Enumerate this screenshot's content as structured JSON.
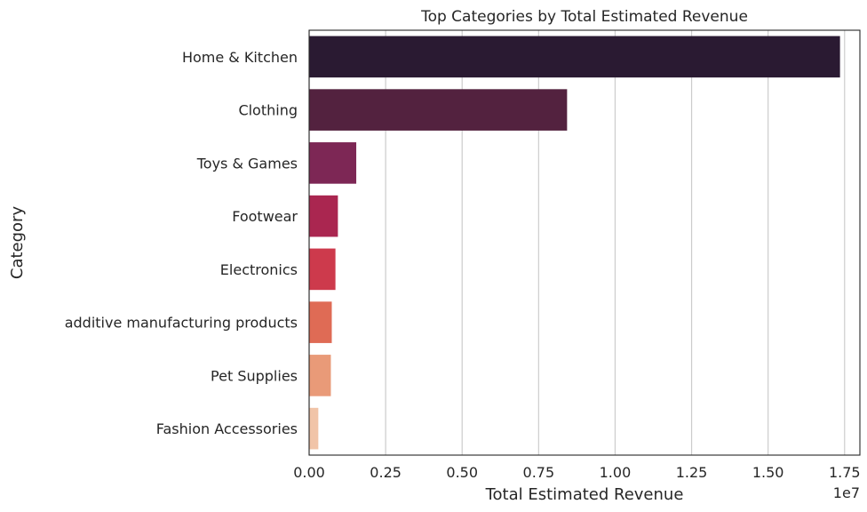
{
  "chart_data": {
    "type": "bar",
    "orientation": "horizontal",
    "title": "Top Categories by Total Estimated Revenue",
    "xlabel": "Total Estimated Revenue",
    "ylabel": "Category",
    "x_offset_label": "1e7",
    "x_scale": 10000000,
    "xlim": [
      0,
      1.8
    ],
    "x_ticks": [
      0.0,
      0.25,
      0.5,
      0.75,
      1.0,
      1.25,
      1.5,
      1.75
    ],
    "x_tick_labels": [
      "0.00",
      "0.25",
      "0.50",
      "0.75",
      "1.00",
      "1.25",
      "1.50",
      "1.75"
    ],
    "grid": "x",
    "categories": [
      "Home & Kitchen",
      "Clothing",
      "Toys & Games",
      "Footwear",
      "Electronics",
      "additive manufacturing products",
      "Pet Supplies",
      "Fashion Accessories"
    ],
    "values": [
      17350000,
      8430000,
      1540000,
      940000,
      860000,
      740000,
      710000,
      300000
    ],
    "colors": [
      "#2a1a32",
      "#53223f",
      "#7d2755",
      "#aa2650",
      "#cd3a4c",
      "#df6b55",
      "#e99a78",
      "#f1c4a8"
    ]
  }
}
